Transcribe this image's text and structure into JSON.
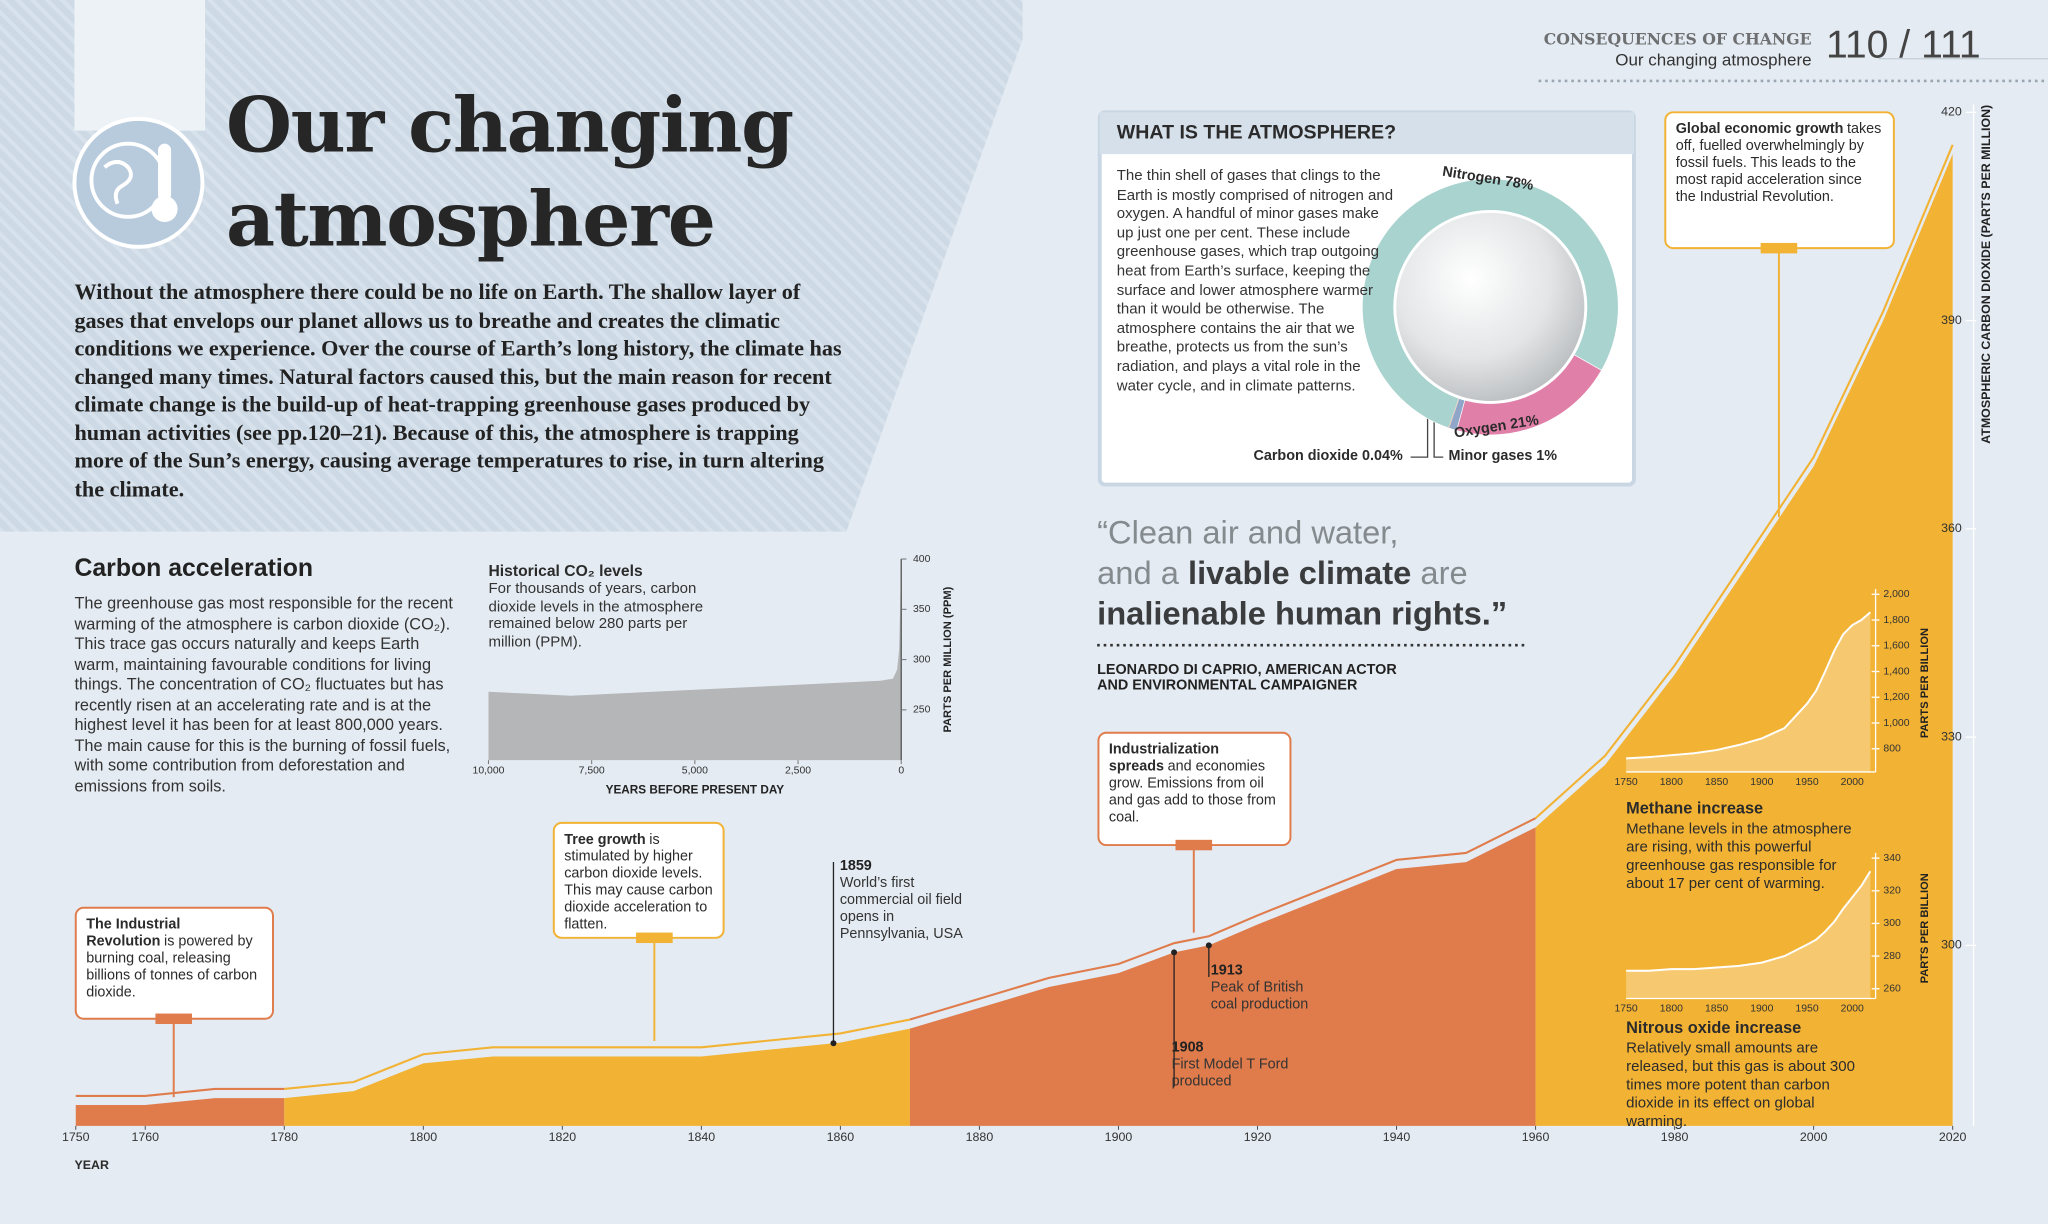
{
  "header": {
    "section": "CONSEQUENCES OF CHANGE",
    "subtitle": "Our changing atmosphere",
    "pages": "110 / 111"
  },
  "title": "Our changing atmosphere",
  "intro": "Without the atmosphere there could be no life on Earth. The shallow layer of gases that envelops our planet allows us to breathe and creates the climatic conditions we experience. Over the course of Earth’s long history, the climate has changed many times. Natural factors caused this, but the main reason for recent climate change is the build-up of heat-trapping greenhouse gases produced by human activities (see pp.120–21). Because of this, the atmosphere is trapping more of the Sun’s energy, causing average temperatures to rise, in turn altering the climate.",
  "carbon_acceleration": {
    "heading": "Carbon acceleration",
    "text": "The greenhouse gas most responsible for the recent warming of the atmosphere is carbon dioxide (CO₂). This trace gas occurs naturally and keeps Earth warm, maintaining favourable conditions for living things. The concentration of CO₂ fluctuates but has recently risen at an accelerating rate and is at the highest level it has been for at least 800,000 years. The main cause for this is the burning of fossil fuels, with some contribution from deforestation and emissions from soils."
  },
  "atmosphere_box": {
    "heading": "WHAT IS THE ATMOSPHERE?",
    "text": "The thin shell of gases that clings to the Earth is mostly comprised of nitrogen and oxygen. A handful of minor gases make up just one per cent. These include greenhouse gases, which trap outgoing heat from Earth’s surface, keeping the surface and lower atmosphere warmer than it would be otherwise. The atmosphere contains the air that we breathe, protects us from the sun’s radiation, and plays a vital role in the water cycle, and in climate patterns."
  },
  "quote": [
    [
      {
        "text": "“Clean air and water,",
        "bold": false
      }
    ],
    [
      {
        "text": "and a",
        "bold": false
      },
      {
        "text": "livable climate",
        "bold": true
      },
      {
        "text": "are",
        "bold": false
      }
    ],
    [
      {
        "text": "inalienable human rights.”",
        "bold": true
      }
    ]
  ],
  "attribution": "LEONARDO DI CAPRIO, AMERICAN ACTOR AND ENVIRONMENTAL CAMPAIGNER",
  "chart_data": [
    {
      "type": "area",
      "xlabel": "YEAR",
      "ylabel": "ATMOSPHERIC CARBON DIOXIDE (PARTS PER MILLION)",
      "xlim": [
        1750,
        2020
      ],
      "ylim": [
        274,
        420
      ],
      "xticks": [
        1750,
        1760,
        1780,
        1800,
        1820,
        1840,
        1860,
        1880,
        1900,
        1920,
        1940,
        1960,
        1980,
        2000,
        2020
      ],
      "yticks": [
        300,
        330,
        360,
        390,
        420
      ],
      "segments": [
        {
          "color": "#e07b4b",
          "x": [
            1750,
            1760,
            1770,
            1780
          ],
          "values": [
            277,
            277,
            278,
            278
          ]
        },
        {
          "color": "#f2b233",
          "x": [
            1780,
            1790,
            1800,
            1810,
            1820,
            1830,
            1840,
            1850,
            1860,
            1870
          ],
          "values": [
            278,
            279,
            283,
            284,
            284,
            284,
            284,
            285,
            286,
            288
          ]
        },
        {
          "color": "#e07b4b",
          "x": [
            1870,
            1880,
            1890,
            1900,
            1908,
            1913,
            1920,
            1930,
            1940,
            1950,
            1960
          ],
          "values": [
            288,
            291,
            294,
            296,
            299,
            300,
            303,
            307,
            311,
            312,
            317
          ]
        },
        {
          "color": "#f2b233",
          "x": [
            1960,
            1970,
            1980,
            1990,
            2000,
            2010,
            2020
          ],
          "values": [
            317,
            326,
            339,
            354,
            369,
            390,
            414
          ]
        }
      ],
      "events": [
        {
          "year": 1859,
          "text": "World’s first commercial oil field opens in Pennsylvania, USA"
        },
        {
          "year": 1908,
          "text": "First Model T Ford produced"
        },
        {
          "year": 1913,
          "text": "Peak of British coal production"
        }
      ],
      "annotations": [
        {
          "lead": "The Industrial Revolution",
          "text": "is powered by burning coal, releasing billions of tonnes of carbon dioxide."
        },
        {
          "lead": "Tree growth",
          "text": "is stimulated by higher carbon dioxide levels. This may cause carbon dioxide acceleration to flatten."
        },
        {
          "lead": "Industrialization spreads",
          "text": "and economies grow. Emissions from oil and gas add to those from coal."
        },
        {
          "lead": "Global economic growth",
          "text": "takes off, fuelled overwhelmingly by fossil fuels. This leads to the most rapid acceleration since the Industrial Revolution."
        }
      ]
    },
    {
      "type": "area",
      "title": "Historical CO₂ levels",
      "text": "For thousands of years, carbon dioxide levels in the atmosphere remained below 280 parts per million (PPM).",
      "xlabel": "YEARS BEFORE PRESENT DAY",
      "ylabel": "PARTS PER MILLION (PPM)",
      "color": "#b4b6b8",
      "x": [
        10000,
        9000,
        8000,
        7000,
        6000,
        5000,
        4000,
        3000,
        2000,
        1000,
        500,
        200,
        100,
        50,
        0
      ],
      "values": [
        268,
        266,
        264,
        266,
        268,
        270,
        272,
        274,
        276,
        278,
        279,
        281,
        290,
        310,
        400
      ],
      "xlim": [
        10000,
        0
      ],
      "ylim": [
        200,
        400
      ],
      "xticks": [
        {
          "value": 10000,
          "label": "10,000"
        },
        {
          "value": 7500,
          "label": "7,500"
        },
        {
          "value": 5000,
          "label": "5,000"
        },
        {
          "value": 2500,
          "label": "2,500"
        },
        0
      ],
      "yticks": [
        250,
        300,
        350,
        400
      ]
    },
    {
      "type": "area",
      "title": "Methane increase",
      "text": "Methane levels in the atmosphere are rising, with this powerful greenhouse gas responsible for about 17 per cent of warming.",
      "ylabel": "PARTS PER BILLION",
      "color": "#ffffff",
      "x": [
        1750,
        1775,
        1800,
        1825,
        1850,
        1875,
        1900,
        1925,
        1950,
        1960,
        1970,
        1980,
        1990,
        2000,
        2010,
        2020
      ],
      "values": [
        725,
        735,
        750,
        765,
        790,
        830,
        880,
        960,
        1150,
        1250,
        1400,
        1560,
        1690,
        1760,
        1800,
        1860
      ],
      "xlim": [
        1750,
        2020
      ],
      "ylim": [
        620,
        2000
      ],
      "xticks": [
        1750,
        1800,
        1850,
        1900,
        1950,
        2000
      ],
      "yticks": [
        800,
        {
          "value": 1000,
          "label": "1,000"
        },
        {
          "value": 1200,
          "label": "1,200"
        },
        {
          "value": 1400,
          "label": "1,400"
        },
        {
          "value": 1600,
          "label": "1,600"
        },
        {
          "value": 1800,
          "label": "1,800"
        },
        {
          "value": 2000,
          "label": "2,000"
        }
      ]
    },
    {
      "type": "area",
      "title": "Nitrous oxide increase",
      "text": "Relatively small amounts are released, but this gas is about 300 times more potent than carbon dioxide in its effect on global warming.",
      "ylabel": "PARTS PER BILLION",
      "color": "#ffffff",
      "x": [
        1750,
        1775,
        1800,
        1825,
        1850,
        1875,
        1900,
        1925,
        1950,
        1960,
        1970,
        1980,
        1990,
        2000,
        2010,
        2020
      ],
      "values": [
        271,
        271,
        272,
        272,
        273,
        274,
        276,
        280,
        287,
        290,
        295,
        301,
        309,
        316,
        323,
        332
      ],
      "xlim": [
        1750,
        2020
      ],
      "ylim": [
        254,
        340
      ],
      "xticks": [
        1750,
        1800,
        1850,
        1900,
        1950,
        2000
      ],
      "yticks": [
        260,
        280,
        300,
        320,
        340
      ]
    },
    {
      "type": "pie",
      "values": [
        78,
        21,
        1,
        0.04
      ],
      "value_labels": [
        "Nitrogen 78%",
        "Oxygen 21%",
        "Minor gases 1%",
        "Carbon dioxide 0.04%"
      ],
      "colors": [
        "#a8d3ce",
        "#e07fa8",
        "#8fa6c9",
        "#e07b4b"
      ]
    }
  ]
}
